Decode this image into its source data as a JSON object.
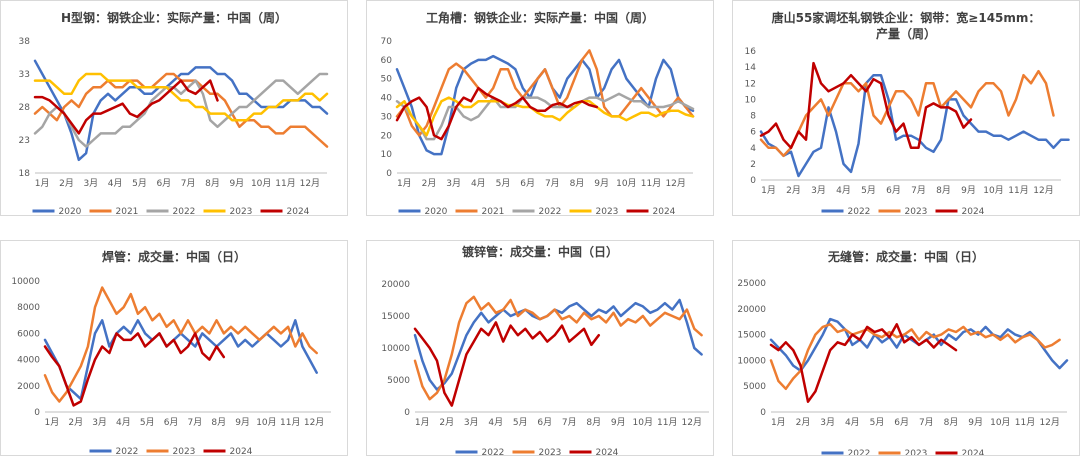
{
  "chart_data": [
    {
      "type": "line",
      "title_lines": [
        "H型钢：钢铁企业：实际产量：中国（周）"
      ],
      "ylim": [
        18,
        38
      ],
      "yticks": [
        18,
        23,
        28,
        33,
        38
      ],
      "xticks": [
        "1月",
        "2月",
        "3月",
        "4月",
        "5月",
        "6月",
        "7月",
        "8月",
        "9月",
        "10月",
        "11月",
        "12月"
      ],
      "series": [
        {
          "name": "2020",
          "color": "#4472c4",
          "values": [
            35,
            33,
            31,
            29,
            27,
            24,
            20,
            21,
            27,
            29,
            30,
            29,
            30,
            31,
            31,
            30,
            30,
            31,
            31,
            32,
            33,
            33,
            34,
            34,
            34,
            33,
            33,
            32,
            30,
            30,
            29,
            28,
            28,
            28,
            28,
            29,
            29,
            29,
            28,
            28,
            27
          ]
        },
        {
          "name": "2021",
          "color": "#ed7d31",
          "values": [
            27,
            28,
            27,
            26,
            28,
            29,
            28,
            30,
            31,
            31,
            32,
            31,
            31,
            32,
            32,
            31,
            31,
            32,
            33,
            33,
            32,
            32,
            32,
            31,
            30,
            30,
            29,
            27,
            25,
            26,
            26,
            25,
            25,
            24,
            24,
            25,
            25,
            25,
            24,
            23,
            22
          ]
        },
        {
          "name": "2022",
          "color": "#a5a5a5",
          "values": [
            24,
            25,
            27,
            28,
            27,
            25,
            23,
            22,
            23,
            24,
            24,
            24,
            25,
            25,
            26,
            27,
            29,
            30,
            31,
            31,
            30,
            31,
            32,
            30,
            26,
            25,
            26,
            27,
            28,
            28,
            29,
            30,
            31,
            32,
            32,
            31,
            30,
            31,
            32,
            33,
            33
          ]
        },
        {
          "name": "2023",
          "color": "#ffc000",
          "values": [
            32,
            32,
            32,
            31,
            30,
            30,
            32,
            33,
            33,
            33,
            32,
            32,
            32,
            32,
            31,
            31,
            31,
            31,
            31,
            30,
            29,
            29,
            28,
            28,
            27,
            27,
            27,
            26,
            26,
            26,
            27,
            27,
            28,
            28,
            29,
            29,
            29,
            30,
            30,
            29,
            30
          ]
        },
        {
          "name": "2024",
          "color": "#c00000",
          "values": [
            29.5,
            29.5,
            29,
            28,
            27,
            25.5,
            24,
            26,
            27,
            27,
            27.5,
            28,
            28.5,
            27,
            26.5,
            27.5,
            28.5,
            29,
            30,
            31,
            32,
            30.5,
            30,
            31,
            32,
            29
          ]
        }
      ]
    },
    {
      "type": "line",
      "title_lines": [
        "工角槽：钢铁企业：实际产量：中国（周）"
      ],
      "ylim": [
        0,
        70
      ],
      "yticks": [
        0,
        10,
        20,
        30,
        40,
        50,
        60,
        70
      ],
      "xticks": [
        "1月",
        "2月",
        "3月",
        "4月",
        "5月",
        "6月",
        "7月",
        "8月",
        "9月",
        "10月",
        "11月",
        "12月"
      ],
      "series": [
        {
          "name": "2020",
          "color": "#4472c4",
          "values": [
            55,
            45,
            35,
            20,
            12,
            10,
            10,
            25,
            45,
            55,
            58,
            60,
            60,
            62,
            60,
            58,
            55,
            45,
            40,
            50,
            55,
            45,
            40,
            50,
            55,
            60,
            55,
            40,
            45,
            55,
            60,
            50,
            45,
            40,
            35,
            50,
            60,
            55,
            40,
            35,
            33
          ]
        },
        {
          "name": "2021",
          "color": "#ed7d31",
          "values": [
            30,
            35,
            25,
            20,
            25,
            35,
            45,
            55,
            58,
            55,
            50,
            45,
            40,
            45,
            55,
            55,
            45,
            40,
            45,
            50,
            55,
            45,
            35,
            40,
            50,
            60,
            65,
            55,
            35,
            30,
            30,
            35,
            40,
            45,
            40,
            35,
            30,
            35,
            40,
            35,
            30
          ]
        },
        {
          "name": "2022",
          "color": "#a5a5a5",
          "values": [
            38,
            35,
            30,
            25,
            18,
            18,
            25,
            35,
            35,
            30,
            28,
            30,
            35,
            40,
            35,
            35,
            35,
            40,
            40,
            40,
            38,
            35,
            35,
            35,
            35,
            38,
            40,
            40,
            38,
            40,
            42,
            40,
            38,
            38,
            35,
            35,
            35,
            36,
            38,
            36,
            34
          ]
        },
        {
          "name": "2023",
          "color": "#ffc000",
          "values": [
            35,
            38,
            30,
            25,
            20,
            30,
            38,
            40,
            38,
            35,
            35,
            38,
            38,
            38,
            38,
            36,
            36,
            35,
            35,
            32,
            30,
            30,
            28,
            32,
            35,
            38,
            38,
            35,
            32,
            30,
            30,
            28,
            30,
            32,
            32,
            30,
            32,
            33,
            33,
            31,
            30
          ]
        },
        {
          "name": "2024",
          "color": "#c00000",
          "values": [
            28,
            35,
            38,
            40,
            35,
            20,
            18,
            25,
            35,
            40,
            38,
            45,
            42,
            40,
            38,
            35,
            37,
            40,
            35,
            33,
            33,
            36,
            37,
            35,
            37,
            38,
            36,
            35
          ]
        }
      ]
    },
    {
      "type": "line",
      "title_lines": [
        "唐山55家调坯轧钢铁企业：钢带：宽≥145mm：",
        "产量（周）"
      ],
      "ylim": [
        0,
        16
      ],
      "yticks": [
        0,
        2,
        4,
        6,
        8,
        10,
        12,
        14,
        16
      ],
      "xticks": [
        "1月",
        "2月",
        "3月",
        "4月",
        "5月",
        "6月",
        "7月",
        "8月",
        "9月",
        "10月",
        "11月",
        "12月"
      ],
      "series": [
        {
          "name": "2022",
          "color": "#4472c4",
          "values": [
            6,
            4.5,
            4,
            3,
            3.5,
            0.5,
            2,
            3.5,
            4,
            9,
            6,
            2,
            1,
            4.5,
            12,
            13,
            13,
            10,
            5,
            5.5,
            5.5,
            5,
            4,
            3.5,
            5,
            10,
            10,
            8,
            7,
            6,
            6,
            5.5,
            5.5,
            5,
            5.5,
            6,
            5.5,
            5,
            5,
            4,
            5,
            5
          ]
        },
        {
          "name": "2023",
          "color": "#ed7d31",
          "values": [
            5,
            4,
            4,
            3,
            4,
            6,
            8,
            9,
            10,
            8,
            10,
            12,
            12,
            11,
            12,
            8,
            7,
            9,
            11,
            11,
            10,
            8,
            12,
            12,
            9,
            10,
            11,
            10,
            9,
            11,
            12,
            12,
            11,
            8,
            10,
            13,
            12,
            13.5,
            12,
            8
          ]
        },
        {
          "name": "2024",
          "color": "#c00000",
          "values": [
            5.5,
            6,
            7,
            5,
            4,
            6,
            5,
            14.5,
            12,
            11,
            11.5,
            12,
            13,
            12,
            11,
            12.5,
            12,
            8,
            6,
            7,
            4,
            4,
            9,
            9.5,
            9,
            9,
            8.5,
            6.5,
            7.5
          ]
        }
      ]
    },
    {
      "type": "line",
      "title_lines": [
        "焊管：成交量：中国（日）"
      ],
      "ylim": [
        0,
        10000
      ],
      "yticks": [
        0,
        2000,
        4000,
        6000,
        8000,
        10000
      ],
      "xticks": [
        "1月",
        "2月",
        "3月",
        "4月",
        "5月",
        "6月",
        "7月",
        "8月",
        "9月",
        "10月",
        "11月",
        "12月"
      ],
      "series": [
        {
          "name": "2022",
          "color": "#4472c4",
          "values": [
            5500,
            4500,
            3500,
            2000,
            1500,
            1000,
            3500,
            6000,
            7000,
            5000,
            6000,
            6500,
            6000,
            7000,
            6000,
            5500,
            6000,
            5000,
            5500,
            6000,
            5500,
            5000,
            6000,
            5500,
            5000,
            5500,
            6000,
            5000,
            5500,
            5000,
            5500,
            6000,
            5500,
            5000,
            5500,
            7000,
            5000,
            4000,
            3000
          ]
        },
        {
          "name": "2023",
          "color": "#ed7d31",
          "values": [
            2800,
            1500,
            800,
            1500,
            2500,
            3500,
            5000,
            8000,
            9500,
            8500,
            7500,
            8000,
            9000,
            7500,
            8000,
            7000,
            7500,
            6500,
            7000,
            6000,
            7000,
            6000,
            6500,
            6000,
            7000,
            6000,
            6500,
            6000,
            6500,
            6000,
            5500,
            6000,
            6500,
            6000,
            6500,
            5000,
            6000,
            5000,
            4500
          ]
        },
        {
          "name": "2024",
          "color": "#c00000",
          "values": [
            5000,
            4200,
            3500,
            2000,
            500,
            800,
            2500,
            4000,
            5000,
            4500,
            6000,
            5500,
            5500,
            6000,
            5000,
            5500,
            6000,
            5000,
            5500,
            4500,
            5000,
            6000,
            4500,
            4000,
            5000,
            4200
          ]
        }
      ]
    },
    {
      "type": "line",
      "title_lines": [
        "镀锌管：成交量：中国（日）"
      ],
      "ylim": [
        0,
        20000
      ],
      "yticks": [
        0,
        5000,
        10000,
        15000,
        20000
      ],
      "xticks": [
        "1月",
        "2月",
        "3月",
        "4月",
        "5月",
        "6月",
        "7月",
        "8月",
        "9月",
        "10月",
        "11月",
        "12月"
      ],
      "series": [
        {
          "name": "2022",
          "color": "#4472c4",
          "values": [
            12000,
            8000,
            5000,
            3500,
            4500,
            6000,
            9000,
            12000,
            14000,
            15500,
            14000,
            15000,
            16000,
            15000,
            15500,
            16000,
            15000,
            14500,
            15000,
            16000,
            15500,
            16500,
            17000,
            16000,
            15000,
            16000,
            15500,
            16500,
            15000,
            16000,
            17000,
            16500,
            15500,
            16000,
            17000,
            16000,
            17500,
            14000,
            10000,
            9000
          ]
        },
        {
          "name": "2023",
          "color": "#ed7d31",
          "values": [
            8000,
            4000,
            2000,
            3000,
            5000,
            9000,
            14000,
            17000,
            18000,
            16000,
            17000,
            15500,
            16000,
            17500,
            15000,
            16000,
            15500,
            14500,
            15000,
            16000,
            14500,
            15000,
            14000,
            15500,
            14500,
            15000,
            14000,
            15500,
            13500,
            14500,
            14000,
            15000,
            13500,
            14500,
            15500,
            15000,
            14500,
            16000,
            13000,
            12000
          ]
        },
        {
          "name": "2024",
          "color": "#c00000",
          "values": [
            13000,
            11500,
            10000,
            8000,
            3000,
            1000,
            5000,
            9000,
            11000,
            13000,
            12000,
            14000,
            11000,
            13500,
            12000,
            13000,
            11500,
            12500,
            11000,
            12000,
            13500,
            11000,
            12000,
            13000,
            10500,
            12000
          ]
        }
      ]
    },
    {
      "type": "line",
      "title_lines": [
        "无缝管：成交量：中国（日）"
      ],
      "ylim": [
        0,
        25000
      ],
      "yticks": [
        0,
        5000,
        10000,
        15000,
        20000,
        25000
      ],
      "xticks": [
        "1月",
        "2月",
        "3月",
        "4月",
        "5月",
        "6月",
        "7月",
        "8月",
        "9月",
        "10月",
        "11月",
        "12月"
      ],
      "series": [
        {
          "name": "2022",
          "color": "#4472c4",
          "values": [
            14000,
            12500,
            11000,
            9000,
            8000,
            10000,
            12500,
            15000,
            18000,
            17500,
            16000,
            13000,
            14000,
            12500,
            15000,
            13500,
            14500,
            12500,
            15000,
            14000,
            13000,
            14000,
            15000,
            13000,
            15000,
            14000,
            15500,
            16000,
            15000,
            16500,
            15000,
            14500,
            16000,
            15000,
            14500,
            15500,
            14000,
            12000,
            10000,
            8500,
            10000
          ]
        },
        {
          "name": "2023",
          "color": "#ed7d31",
          "values": [
            10000,
            6000,
            4500,
            6500,
            8000,
            12000,
            15000,
            16500,
            17000,
            15500,
            16000,
            15000,
            15500,
            16000,
            15000,
            14500,
            15500,
            14500,
            15000,
            16000,
            14000,
            15500,
            14500,
            15000,
            16000,
            15500,
            16500,
            15000,
            15500,
            14500,
            15000,
            14000,
            15000,
            13500,
            14500,
            15000,
            14000,
            12500,
            13000,
            14000
          ]
        },
        {
          "name": "2024",
          "color": "#c00000",
          "values": [
            13000,
            12000,
            13500,
            12000,
            9000,
            2000,
            4000,
            8000,
            12000,
            13500,
            13000,
            15000,
            14000,
            16500,
            15500,
            16000,
            14500,
            17000,
            13500,
            14500,
            13000,
            14000,
            12500,
            14000,
            13000,
            12000
          ]
        }
      ]
    }
  ]
}
